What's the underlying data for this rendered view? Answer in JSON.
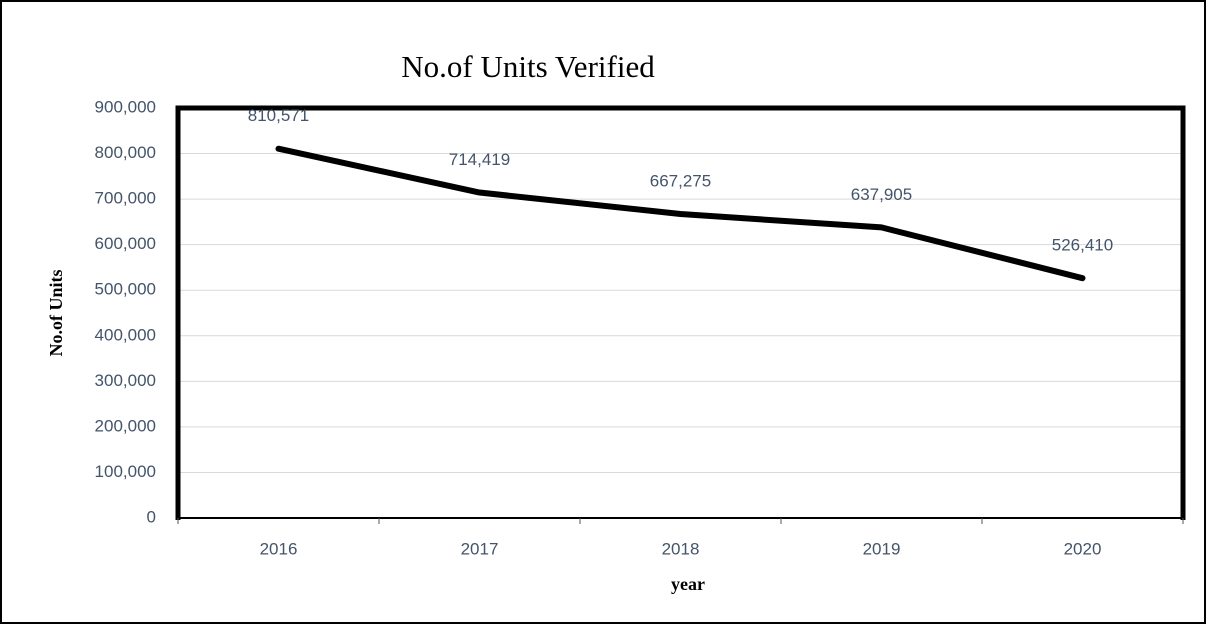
{
  "chart_data": {
    "type": "line",
    "title": "No.of Units Verified",
    "x_label": "year",
    "y_label": "No.of Units",
    "categories": [
      "2016",
      "2017",
      "2018",
      "2019",
      "2020"
    ],
    "values": [
      810571,
      714419,
      667275,
      637905,
      526410
    ],
    "value_labels": [
      "810,571",
      "714,419",
      "667,275",
      "637,905",
      "526,410"
    ],
    "color": "#000000",
    "ylim": [
      0,
      900000
    ],
    "yticks": [
      0,
      {
        "value": 100000,
        "label": "100,000"
      },
      {
        "value": 200000,
        "label": "200,000"
      },
      {
        "value": 300000,
        "label": "300,000"
      },
      {
        "value": 400000,
        "label": "400,000"
      },
      {
        "value": 500000,
        "label": "500,000"
      },
      {
        "value": 600000,
        "label": "600,000"
      },
      {
        "value": 700000,
        "label": "700,000"
      },
      {
        "value": 800000,
        "label": "800,000"
      },
      {
        "value": 900000,
        "label": "900,000"
      }
    ],
    "grid": true
  }
}
